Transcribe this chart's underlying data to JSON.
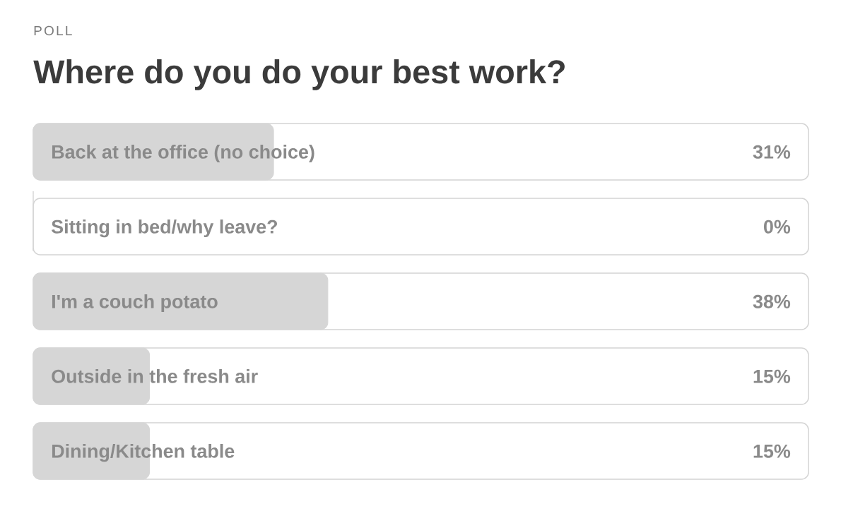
{
  "chart_data": {
    "type": "bar",
    "orientation": "horizontal",
    "annotations": [
      "POLL"
    ],
    "title": "Where do you do your best work?",
    "categories": [
      "Back at the office (no choice)",
      "Sitting in bed/why leave?",
      "I'm a couch potato",
      "Outside in the fresh air",
      "Dining/Kitchen table"
    ],
    "values": [
      31,
      0,
      38,
      15,
      15
    ],
    "value_labels": [
      "31%",
      "0%",
      "38%",
      "15%",
      "15%"
    ],
    "color": "#d6d6d6",
    "xlim": [
      0,
      100
    ],
    "tick_labels": "y"
  }
}
